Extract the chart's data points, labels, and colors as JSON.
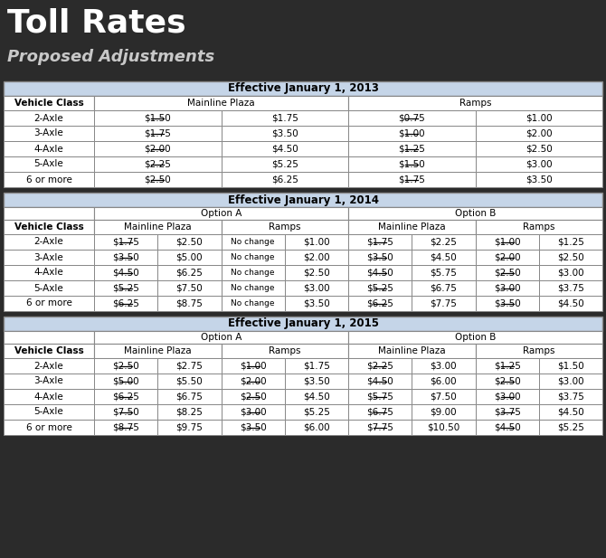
{
  "title": "Toll Rates",
  "subtitle": "Proposed Adjustments",
  "bg_color": "#2b2b2b",
  "title_color": "#ffffff",
  "subtitle_color": "#c8c8c8",
  "header_bg": "#c5d5e8",
  "white_bg": "#ffffff",
  "vehicle_classes": [
    "2-Axle",
    "3-Axle",
    "4-Axle",
    "5-Axle",
    "6 or more"
  ],
  "section_2013": {
    "header": "Effective January 1, 2013",
    "rows": [
      [
        "2-Axle",
        "$1.50",
        "$1.75",
        "$0.75",
        "$1.00"
      ],
      [
        "3-Axle",
        "$1.75",
        "$3.50",
        "$1.00",
        "$2.00"
      ],
      [
        "4-Axle",
        "$2.00",
        "$4.50",
        "$1.25",
        "$2.50"
      ],
      [
        "5-Axle",
        "$2.25",
        "$5.25",
        "$1.50",
        "$3.00"
      ],
      [
        "6 or more",
        "$2.50",
        "$6.25",
        "$1.75",
        "$3.50"
      ]
    ],
    "strikethrough": [
      [
        true,
        false,
        true,
        false
      ],
      [
        true,
        false,
        true,
        false
      ],
      [
        true,
        false,
        true,
        false
      ],
      [
        true,
        false,
        true,
        false
      ],
      [
        true,
        false,
        true,
        false
      ]
    ]
  },
  "section_2014": {
    "header": "Effective January 1, 2014",
    "rows": [
      [
        "2-Axle",
        "$1.75",
        "$2.50",
        "No change",
        "$1.00",
        "$1.75",
        "$2.25",
        "$1.00",
        "$1.25"
      ],
      [
        "3-Axle",
        "$3.50",
        "$5.00",
        "No change",
        "$2.00",
        "$3.50",
        "$4.50",
        "$2.00",
        "$2.50"
      ],
      [
        "4-Axle",
        "$4.50",
        "$6.25",
        "No change",
        "$2.50",
        "$4.50",
        "$5.75",
        "$2.50",
        "$3.00"
      ],
      [
        "5-Axle",
        "$5.25",
        "$7.50",
        "No change",
        "$3.00",
        "$5.25",
        "$6.75",
        "$3.00",
        "$3.75"
      ],
      [
        "6 or more",
        "$6.25",
        "$8.75",
        "No change",
        "$3.50",
        "$6.25",
        "$7.75",
        "$3.50",
        "$4.50"
      ]
    ],
    "strikethrough": [
      [
        true,
        false,
        false,
        false,
        true,
        false,
        true,
        false
      ],
      [
        true,
        false,
        false,
        false,
        true,
        false,
        true,
        false
      ],
      [
        true,
        false,
        false,
        false,
        true,
        false,
        true,
        false
      ],
      [
        true,
        false,
        false,
        false,
        true,
        false,
        true,
        false
      ],
      [
        true,
        false,
        false,
        false,
        true,
        false,
        true,
        false
      ]
    ]
  },
  "section_2015": {
    "header": "Effective January 1, 2015",
    "rows": [
      [
        "2-Axle",
        "$2.50",
        "$2.75",
        "$1.00",
        "$1.75",
        "$2.25",
        "$3.00",
        "$1.25",
        "$1.50"
      ],
      [
        "3-Axle",
        "$5.00",
        "$5.50",
        "$2.00",
        "$3.50",
        "$4.50",
        "$6.00",
        "$2.50",
        "$3.00"
      ],
      [
        "4-Axle",
        "$6.25",
        "$6.75",
        "$2.50",
        "$4.50",
        "$5.75",
        "$7.50",
        "$3.00",
        "$3.75"
      ],
      [
        "5-Axle",
        "$7.50",
        "$8.25",
        "$3.00",
        "$5.25",
        "$6.75",
        "$9.00",
        "$3.75",
        "$4.50"
      ],
      [
        "6 or more",
        "$8.75",
        "$9.75",
        "$3.50",
        "$6.00",
        "$7.75",
        "$10.50",
        "$4.50",
        "$5.25"
      ]
    ],
    "strikethrough": [
      [
        true,
        false,
        true,
        false,
        true,
        false,
        true,
        false
      ],
      [
        true,
        false,
        true,
        false,
        true,
        false,
        true,
        false
      ],
      [
        true,
        false,
        true,
        false,
        true,
        false,
        true,
        false
      ],
      [
        true,
        false,
        true,
        false,
        true,
        false,
        true,
        false
      ],
      [
        true,
        false,
        true,
        false,
        true,
        false,
        true,
        false
      ]
    ]
  }
}
